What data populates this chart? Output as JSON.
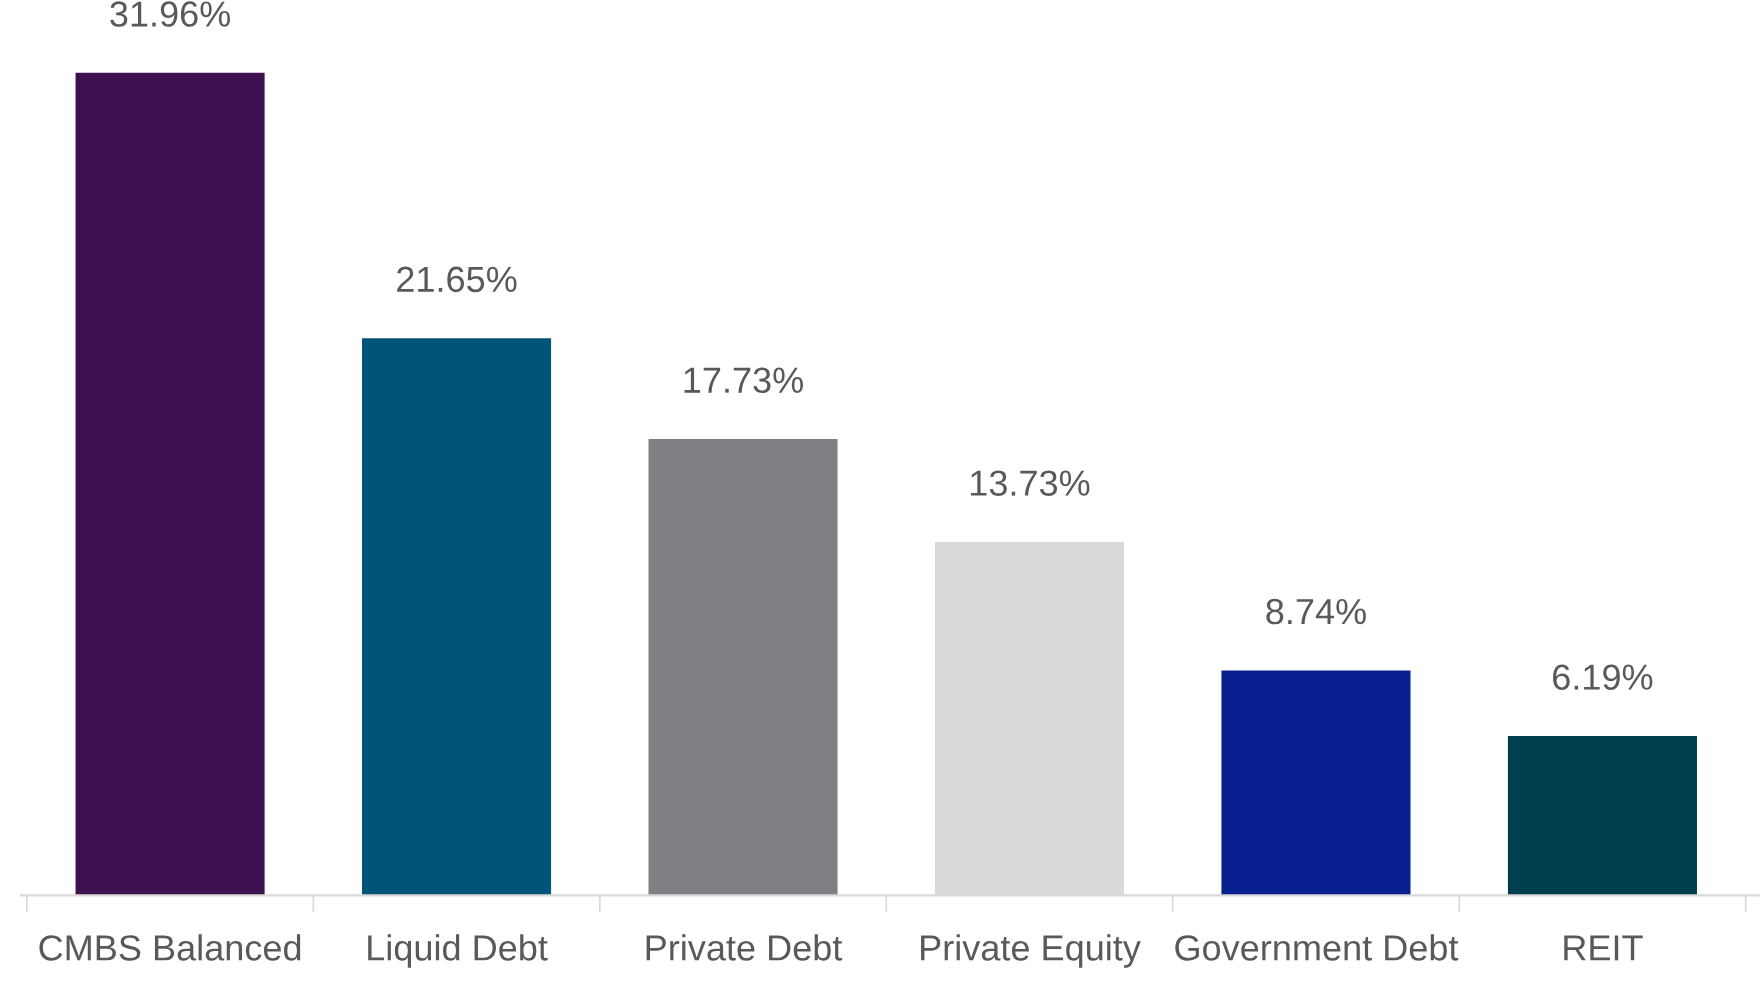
{
  "chart_data": {
    "type": "bar",
    "categories": [
      "CMBS Balanced",
      "Liquid Debt",
      "Private Debt",
      "Private Equity",
      "Government Debt",
      "REIT"
    ],
    "values": [
      31.96,
      21.65,
      17.73,
      13.73,
      8.74,
      6.19
    ],
    "colors": [
      "#3d1150",
      "#005478",
      "#7f8084",
      "#d9d9d9",
      "#0a1f8f",
      "#003f4d"
    ],
    "value_labels": [
      "31.96%",
      "21.65%",
      "17.73%",
      "13.73%",
      "8.74%",
      "6.19%"
    ],
    "grid": false,
    "legend": false,
    "tick_labels": "x"
  }
}
